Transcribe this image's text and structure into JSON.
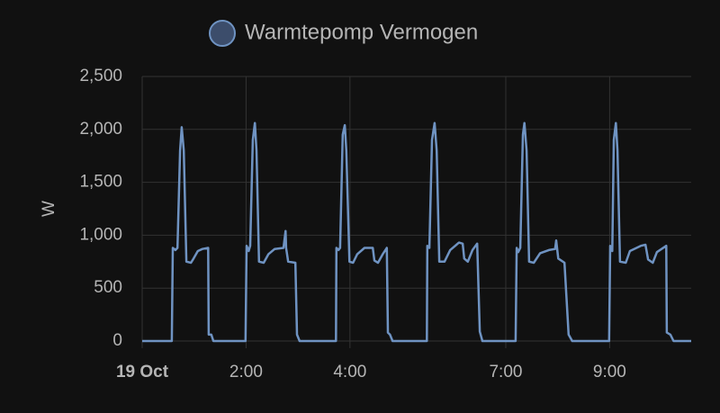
{
  "chart_data": {
    "type": "line",
    "y_label": "W",
    "grid": true,
    "xlim": [
      0,
      10.57
    ],
    "ylim": [
      0,
      2500
    ],
    "xticks": [
      {
        "value": 0,
        "label": "19 Oct"
      },
      {
        "value": 2,
        "label": "2:00"
      },
      {
        "value": 4,
        "label": "4:00"
      },
      {
        "value": 7,
        "label": "7:00"
      },
      {
        "value": 9,
        "label": "9:00"
      }
    ],
    "yticks": [
      0,
      500,
      {
        "value": 1000,
        "label": "1,000"
      },
      {
        "value": 1500,
        "label": "1,500"
      },
      {
        "value": 2000,
        "label": "2,000"
      },
      {
        "value": 2500,
        "label": "2,500"
      }
    ],
    "series": [
      {
        "name": "Warmtepomp Vermogen",
        "color": "#6f93c2",
        "x": [
          0,
          0.57,
          0.59,
          0.64,
          0.68,
          0.73,
          0.76,
          0.8,
          0.85,
          0.94,
          0.99,
          1.07,
          1.16,
          1.27,
          1.28,
          1.33,
          1.37,
          1.99,
          2.01,
          2.05,
          2.08,
          2.13,
          2.17,
          2.2,
          2.25,
          2.34,
          2.43,
          2.55,
          2.72,
          2.76,
          2.77,
          2.81,
          2.95,
          2.98,
          3.03,
          3.73,
          3.74,
          3.78,
          3.81,
          3.86,
          3.9,
          3.93,
          3.99,
          4.06,
          4.14,
          4.28,
          4.44,
          4.47,
          4.54,
          4.63,
          4.71,
          4.73,
          4.77,
          4.82,
          5.48,
          5.49,
          5.53,
          5.58,
          5.63,
          5.67,
          5.72,
          5.82,
          5.93,
          6.1,
          6.17,
          6.2,
          6.27,
          6.36,
          6.45,
          6.5,
          6.55,
          7.19,
          7.21,
          7.24,
          7.28,
          7.33,
          7.36,
          7.4,
          7.45,
          7.54,
          7.66,
          7.83,
          7.95,
          7.97,
          8.01,
          8.13,
          8.21,
          8.28,
          8.99,
          9.01,
          9.05,
          9.08,
          9.12,
          9.15,
          9.2,
          9.31,
          9.39,
          9.6,
          9.69,
          9.74,
          9.83,
          9.91,
          10.09,
          10.1,
          10.17,
          10.23,
          10.57
        ],
        "values": [
          0,
          0,
          880,
          860,
          880,
          1800,
          2020,
          1800,
          750,
          740,
          780,
          850,
          870,
          880,
          60,
          60,
          0,
          0,
          900,
          850,
          900,
          1900,
          2060,
          1800,
          750,
          740,
          820,
          870,
          880,
          1040,
          880,
          750,
          740,
          60,
          0,
          0,
          880,
          860,
          880,
          1950,
          2040,
          1800,
          750,
          740,
          820,
          880,
          880,
          760,
          740,
          820,
          880,
          80,
          60,
          0,
          0,
          900,
          880,
          1900,
          2060,
          1800,
          750,
          750,
          860,
          930,
          920,
          780,
          750,
          860,
          920,
          90,
          0,
          0,
          880,
          840,
          880,
          1950,
          2060,
          1800,
          750,
          740,
          830,
          860,
          870,
          950,
          780,
          740,
          60,
          0,
          0,
          900,
          850,
          1900,
          2060,
          1800,
          750,
          740,
          850,
          900,
          910,
          770,
          740,
          840,
          900,
          80,
          60,
          0,
          0
        ]
      }
    ]
  }
}
